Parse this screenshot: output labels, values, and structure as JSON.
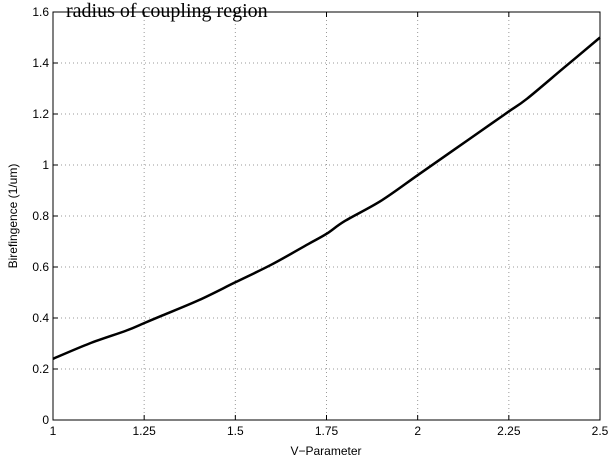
{
  "chart_data": {
    "type": "line",
    "title": "radius of coupling region",
    "xlabel": "V−Parameter",
    "ylabel": "Birefingence (1/um)",
    "xlim": [
      1,
      2.5
    ],
    "ylim": [
      0,
      1.6
    ],
    "x_ticks": [
      "1",
      "1.25",
      "1.5",
      "1.75",
      "2",
      "2.25",
      "2.5"
    ],
    "y_ticks": [
      "0",
      "0.2",
      "0.4",
      "0.6",
      "0.8",
      "1",
      "1.2",
      "1.4",
      "1.6"
    ],
    "grid": true,
    "series": [
      {
        "x": [
          1.0,
          1.1,
          1.2,
          1.25,
          1.3,
          1.4,
          1.5,
          1.6,
          1.7,
          1.75,
          1.8,
          1.9,
          2.0,
          2.1,
          2.2,
          2.25,
          2.3,
          2.4,
          2.5
        ],
        "values": [
          0.24,
          0.3,
          0.35,
          0.38,
          0.41,
          0.47,
          0.54,
          0.61,
          0.69,
          0.73,
          0.78,
          0.86,
          0.96,
          1.06,
          1.16,
          1.21,
          1.26,
          1.38,
          1.5
        ],
        "color": "#000000"
      }
    ]
  }
}
